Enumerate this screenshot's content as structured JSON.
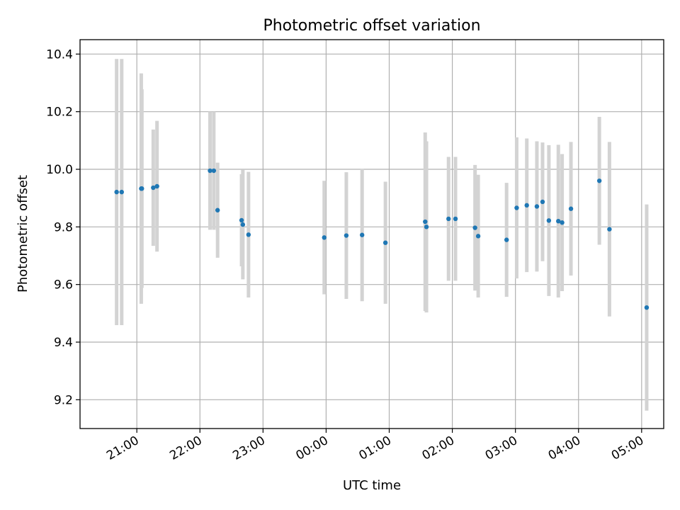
{
  "chart_data": {
    "type": "scatter",
    "title": "Photometric offset variation",
    "xlabel": "UTC time",
    "ylabel": "Photometric offset",
    "xlim": [
      -3.9,
      5.35
    ],
    "ylim": [
      9.1,
      10.45
    ],
    "x_unit": "hours relative to 00:00 UTC",
    "grid": true,
    "colors": {
      "points": "#1f77b4",
      "errorbars": "#d3d3d3"
    },
    "xticks": [
      {
        "value": -3,
        "label": "21:00"
      },
      {
        "value": -2,
        "label": "22:00"
      },
      {
        "value": -1,
        "label": "23:00"
      },
      {
        "value": 0,
        "label": "00:00"
      },
      {
        "value": 1,
        "label": "01:00"
      },
      {
        "value": 2,
        "label": "02:00"
      },
      {
        "value": 3,
        "label": "03:00"
      },
      {
        "value": 4,
        "label": "04:00"
      },
      {
        "value": 5,
        "label": "05:00"
      }
    ],
    "yticks": [
      {
        "value": 9.2,
        "label": "9.2"
      },
      {
        "value": 9.4,
        "label": "9.4"
      },
      {
        "value": 9.6,
        "label": "9.6"
      },
      {
        "value": 9.8,
        "label": "9.8"
      },
      {
        "value": 10.0,
        "label": "10.0"
      },
      {
        "value": 10.2,
        "label": "10.2"
      },
      {
        "value": 10.4,
        "label": "10.4"
      }
    ],
    "points": [
      {
        "x": -3.32,
        "y": 9.921,
        "err": 0.462
      },
      {
        "x": -3.24,
        "y": 9.921,
        "err": 0.462
      },
      {
        "x": -2.93,
        "y": 9.933,
        "err": 0.4
      },
      {
        "x": -2.92,
        "y": 9.933,
        "err": 0.345
      },
      {
        "x": -2.74,
        "y": 9.936,
        "err": 0.202
      },
      {
        "x": -2.68,
        "y": 9.941,
        "err": 0.227
      },
      {
        "x": -1.84,
        "y": 9.995,
        "err": 0.205
      },
      {
        "x": -1.78,
        "y": 9.995,
        "err": 0.205
      },
      {
        "x": -1.72,
        "y": 9.858,
        "err": 0.165
      },
      {
        "x": -1.34,
        "y": 9.823,
        "err": 0.16
      },
      {
        "x": -1.32,
        "y": 9.808,
        "err": 0.19
      },
      {
        "x": -1.23,
        "y": 9.773,
        "err": 0.218
      },
      {
        "x": -0.03,
        "y": 9.763,
        "err": 0.197
      },
      {
        "x": 0.32,
        "y": 9.77,
        "err": 0.22
      },
      {
        "x": 0.57,
        "y": 9.772,
        "err": 0.23
      },
      {
        "x": 0.94,
        "y": 9.745,
        "err": 0.212
      },
      {
        "x": 1.57,
        "y": 9.818,
        "err": 0.31
      },
      {
        "x": 1.59,
        "y": 9.8,
        "err": 0.297
      },
      {
        "x": 1.94,
        "y": 9.828,
        "err": 0.215
      },
      {
        "x": 2.05,
        "y": 9.828,
        "err": 0.215
      },
      {
        "x": 2.36,
        "y": 9.797,
        "err": 0.218
      },
      {
        "x": 2.41,
        "y": 9.768,
        "err": 0.213
      },
      {
        "x": 2.86,
        "y": 9.755,
        "err": 0.198
      },
      {
        "x": 3.02,
        "y": 9.866,
        "err": 0.245
      },
      {
        "x": 3.18,
        "y": 9.875,
        "err": 0.232
      },
      {
        "x": 3.34,
        "y": 9.871,
        "err": 0.226
      },
      {
        "x": 3.43,
        "y": 9.887,
        "err": 0.206
      },
      {
        "x": 3.53,
        "y": 9.822,
        "err": 0.262
      },
      {
        "x": 3.68,
        "y": 9.82,
        "err": 0.265
      },
      {
        "x": 3.74,
        "y": 9.815,
        "err": 0.238
      },
      {
        "x": 3.88,
        "y": 9.863,
        "err": 0.232
      },
      {
        "x": 4.33,
        "y": 9.96,
        "err": 0.222
      },
      {
        "x": 4.49,
        "y": 9.792,
        "err": 0.303
      },
      {
        "x": 5.08,
        "y": 9.52,
        "err": 0.358
      }
    ]
  }
}
